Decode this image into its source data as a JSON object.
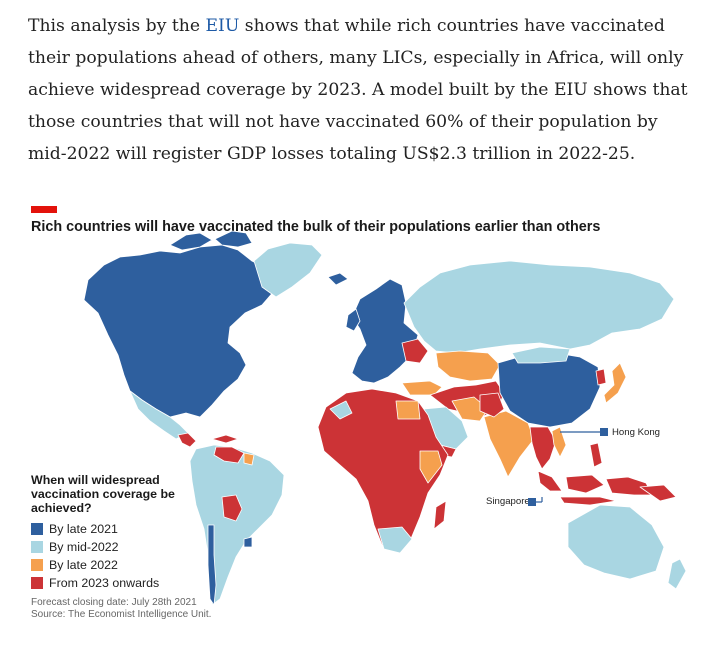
{
  "article": {
    "text_before_link": "This analysis by the ",
    "link_text": "EIU",
    "text_after_link": " shows that while rich countries have vaccinated their populations ahead of others, many LICs, especially in Africa, will only achieve widespread coverage by 2023. A model built by the EIU shows that those countries that will not have vaccinated 60% of their population by mid-2022 will register GDP losses totaling US$2.3 trillion in 2022-25."
  },
  "chart": {
    "title": "Rich countries will have vaccinated the bulk of their populations earlier than others",
    "legend_title": "When will widespread vaccination coverage be achieved?",
    "legend": [
      {
        "label": "By late 2021",
        "color": "#2e5f9e"
      },
      {
        "label": "By mid-2022",
        "color": "#a9d6e2"
      },
      {
        "label": "By late 2022",
        "color": "#f5a04e"
      },
      {
        "label": "From 2023 onwards",
        "color": "#cc3336"
      }
    ],
    "callouts": {
      "hong_kong": "Hong Kong",
      "singapore": "Singapore"
    },
    "footnote_line1": "Forecast closing date: July 28th 2021",
    "footnote_line2": "Source: The Economist Intelligence Unit."
  },
  "colors": {
    "accent_red": "#e3120b",
    "ocean": "#ffffff",
    "border": "#ffffff"
  }
}
